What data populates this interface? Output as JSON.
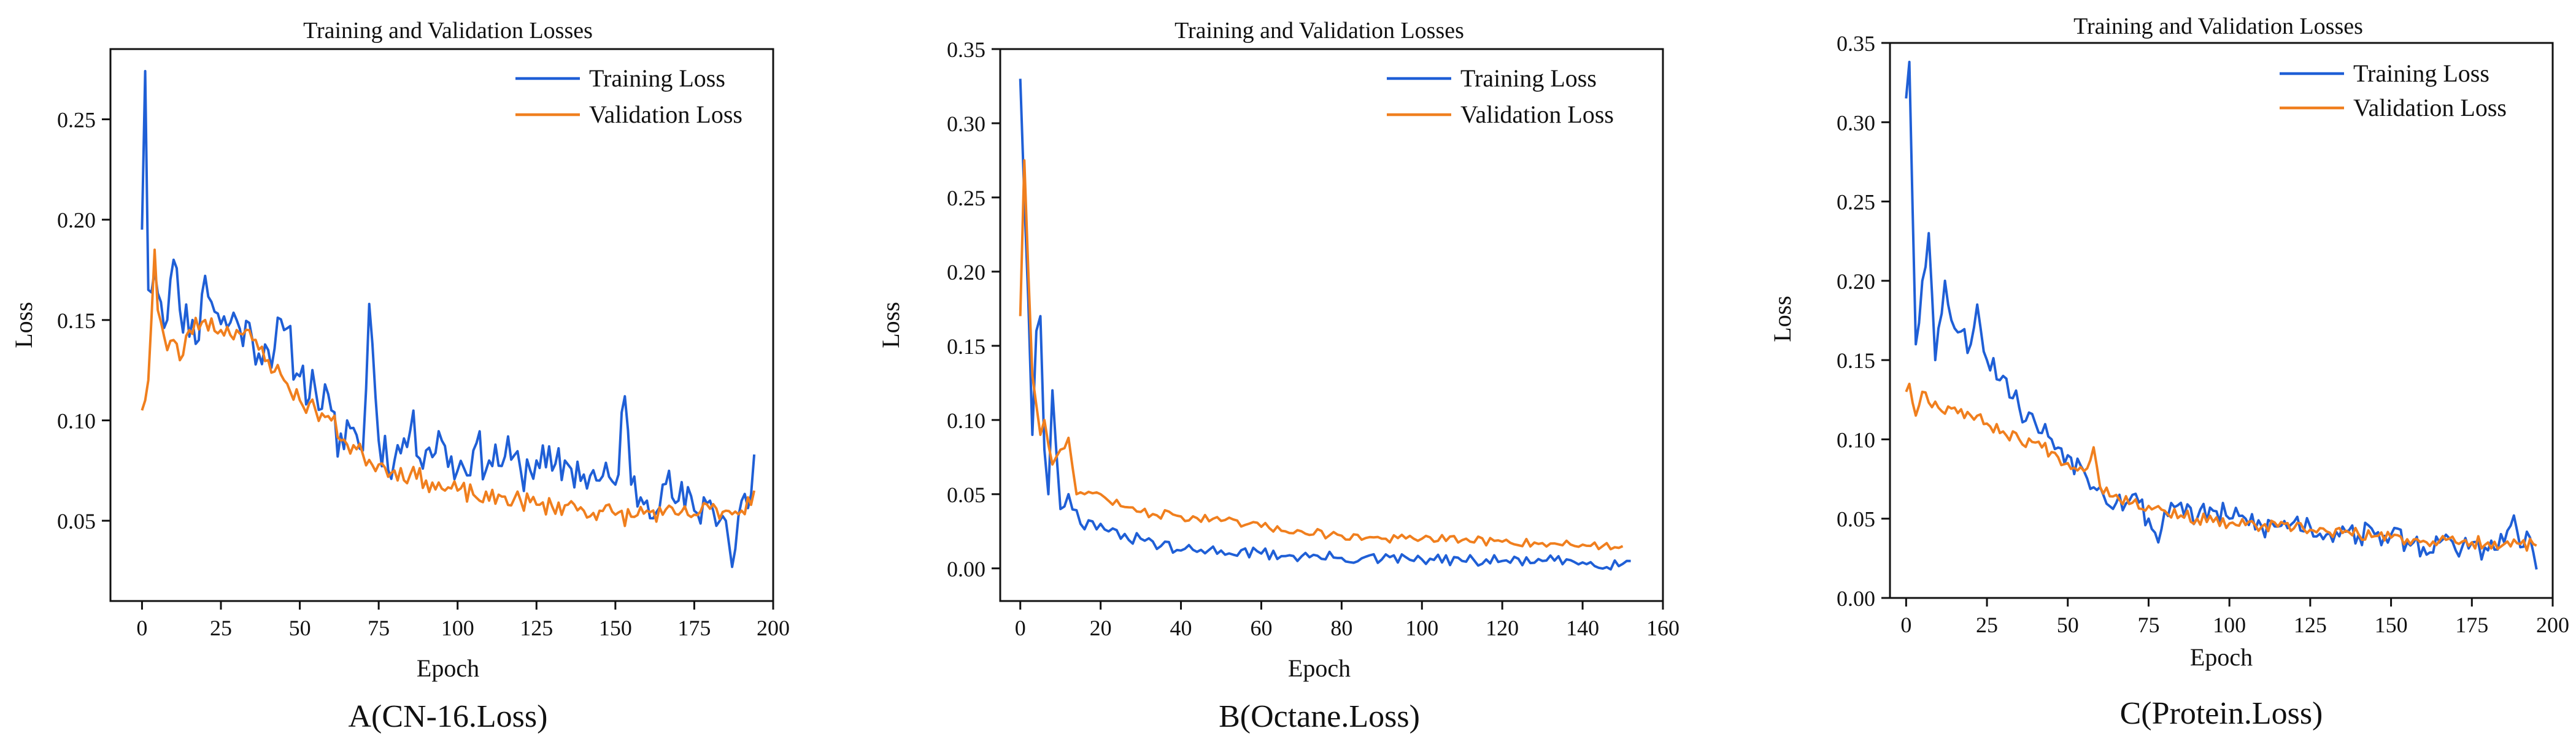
{
  "colors": {
    "training": "#1f5fd6",
    "validation": "#f07f1e",
    "axis": "#111111"
  },
  "chart_data": [
    {
      "type": "line",
      "id": "A",
      "title": "Training and Validation Losses",
      "xlabel": "Epoch",
      "ylabel": "Loss",
      "caption": "A(CN-16.Loss)",
      "xlim": [
        -10,
        200
      ],
      "ylim": [
        0.01,
        0.285
      ],
      "xticks": [
        0,
        25,
        50,
        75,
        100,
        125,
        150,
        175,
        200
      ],
      "yticks": [
        0.05,
        0.1,
        0.15,
        0.2,
        0.25
      ],
      "ytick_labels": [
        "0.05",
        "0.10",
        "0.15",
        "0.20",
        "0.25"
      ],
      "legend_position": "top-right",
      "series": [
        {
          "name": "Training Loss",
          "color": "#1f5fd6",
          "anchors": [
            [
              0,
              0.195
            ],
            [
              1,
              0.274
            ],
            [
              2,
              0.165
            ],
            [
              4,
              0.175
            ],
            [
              8,
              0.15
            ],
            [
              10,
              0.18
            ],
            [
              12,
              0.155
            ],
            [
              16,
              0.15
            ],
            [
              18,
              0.14
            ],
            [
              20,
              0.172
            ],
            [
              25,
              0.148
            ],
            [
              30,
              0.15
            ],
            [
              35,
              0.14
            ],
            [
              40,
              0.135
            ],
            [
              45,
              0.145
            ],
            [
              50,
              0.122
            ],
            [
              55,
              0.115
            ],
            [
              60,
              0.105
            ],
            [
              62,
              0.082
            ],
            [
              65,
              0.1
            ],
            [
              70,
              0.085
            ],
            [
              72,
              0.158
            ],
            [
              75,
              0.09
            ],
            [
              80,
              0.08
            ],
            [
              85,
              0.095
            ],
            [
              90,
              0.085
            ],
            [
              95,
              0.09
            ],
            [
              100,
              0.075
            ],
            [
              105,
              0.085
            ],
            [
              110,
              0.08
            ],
            [
              115,
              0.082
            ],
            [
              120,
              0.075
            ],
            [
              125,
              0.08
            ],
            [
              130,
              0.075
            ],
            [
              135,
              0.078
            ],
            [
              140,
              0.073
            ],
            [
              145,
              0.07
            ],
            [
              150,
              0.068
            ],
            [
              153,
              0.112
            ],
            [
              155,
              0.068
            ],
            [
              160,
              0.06
            ],
            [
              165,
              0.068
            ],
            [
              170,
              0.06
            ],
            [
              175,
              0.055
            ],
            [
              180,
              0.06
            ],
            [
              185,
              0.05
            ],
            [
              187,
              0.027
            ],
            [
              190,
              0.06
            ],
            [
              193,
              0.063
            ],
            [
              194,
              0.083
            ]
          ],
          "noise": 0.012,
          "seed": 11
        },
        {
          "name": "Validation Loss",
          "color": "#f07f1e",
          "anchors": [
            [
              0,
              0.105
            ],
            [
              2,
              0.12
            ],
            [
              4,
              0.185
            ],
            [
              5,
              0.155
            ],
            [
              8,
              0.135
            ],
            [
              10,
              0.14
            ],
            [
              12,
              0.13
            ],
            [
              15,
              0.145
            ],
            [
              20,
              0.15
            ],
            [
              25,
              0.145
            ],
            [
              30,
              0.145
            ],
            [
              35,
              0.14
            ],
            [
              40,
              0.13
            ],
            [
              45,
              0.12
            ],
            [
              50,
              0.11
            ],
            [
              55,
              0.105
            ],
            [
              60,
              0.1
            ],
            [
              65,
              0.088
            ],
            [
              70,
              0.083
            ],
            [
              75,
              0.078
            ],
            [
              80,
              0.075
            ],
            [
              85,
              0.073
            ],
            [
              90,
              0.07
            ],
            [
              95,
              0.066
            ],
            [
              100,
              0.065
            ],
            [
              105,
              0.063
            ],
            [
              110,
              0.06
            ],
            [
              115,
              0.062
            ],
            [
              120,
              0.06
            ],
            [
              125,
              0.058
            ],
            [
              130,
              0.057
            ],
            [
              135,
              0.058
            ],
            [
              140,
              0.055
            ],
            [
              145,
              0.055
            ],
            [
              150,
              0.053
            ],
            [
              155,
              0.052
            ],
            [
              160,
              0.055
            ],
            [
              165,
              0.053
            ],
            [
              170,
              0.053
            ],
            [
              175,
              0.053
            ],
            [
              180,
              0.056
            ],
            [
              185,
              0.055
            ],
            [
              190,
              0.055
            ],
            [
              194,
              0.065
            ]
          ],
          "noise": 0.005,
          "seed": 23
        }
      ]
    },
    {
      "type": "line",
      "id": "B",
      "title": "Training and Validation Losses",
      "xlabel": "Epoch",
      "ylabel": "Loss",
      "caption": "B(Octane.Loss)",
      "xlim": [
        -5,
        160
      ],
      "ylim": [
        -0.022,
        0.35
      ],
      "xticks": [
        0,
        20,
        40,
        60,
        80,
        100,
        120,
        140,
        160
      ],
      "yticks": [
        0,
        0.05,
        0.1,
        0.15,
        0.2,
        0.25,
        0.3,
        0.35
      ],
      "ytick_labels": [
        "0.00",
        "0.05",
        "0.10",
        "0.15",
        "0.20",
        "0.25",
        "0.30",
        "0.35"
      ],
      "legend_position": "top-right",
      "series": [
        {
          "name": "Training Loss",
          "color": "#1f5fd6",
          "anchors": [
            [
              0,
              0.33
            ],
            [
              1,
              0.25
            ],
            [
              2,
              0.18
            ],
            [
              3,
              0.09
            ],
            [
              4,
              0.16
            ],
            [
              5,
              0.17
            ],
            [
              6,
              0.08
            ],
            [
              7,
              0.05
            ],
            [
              8,
              0.12
            ],
            [
              10,
              0.04
            ],
            [
              12,
              0.05
            ],
            [
              15,
              0.03
            ],
            [
              20,
              0.03
            ],
            [
              25,
              0.02
            ],
            [
              30,
              0.02
            ],
            [
              35,
              0.015
            ],
            [
              40,
              0.012
            ],
            [
              50,
              0.012
            ],
            [
              60,
              0.01
            ],
            [
              70,
              0.008
            ],
            [
              80,
              0.007
            ],
            [
              90,
              0.006
            ],
            [
              100,
              0.006
            ],
            [
              110,
              0.005
            ],
            [
              120,
              0.005
            ],
            [
              130,
              0.005
            ],
            [
              140,
              0.004
            ],
            [
              150,
              0.003
            ],
            [
              152,
              0.005
            ]
          ],
          "noise": 0.004,
          "seed": 31
        },
        {
          "name": "Validation Loss",
          "color": "#f07f1e",
          "anchors": [
            [
              0,
              0.17
            ],
            [
              1,
              0.275
            ],
            [
              2,
              0.2
            ],
            [
              3,
              0.13
            ],
            [
              4,
              0.11
            ],
            [
              5,
              0.09
            ],
            [
              6,
              0.1
            ],
            [
              8,
              0.07
            ],
            [
              10,
              0.08
            ],
            [
              12,
              0.088
            ],
            [
              14,
              0.05
            ],
            [
              16,
              0.05
            ],
            [
              20,
              0.05
            ],
            [
              25,
              0.042
            ],
            [
              30,
              0.038
            ],
            [
              40,
              0.035
            ],
            [
              50,
              0.032
            ],
            [
              60,
              0.028
            ],
            [
              70,
              0.025
            ],
            [
              80,
              0.022
            ],
            [
              90,
              0.02
            ],
            [
              100,
              0.02
            ],
            [
              110,
              0.019
            ],
            [
              120,
              0.018
            ],
            [
              130,
              0.017
            ],
            [
              140,
              0.016
            ],
            [
              145,
              0.015
            ],
            [
              150,
              0.015
            ]
          ],
          "noise": 0.003,
          "seed": 47
        }
      ]
    },
    {
      "type": "line",
      "id": "C",
      "title": "Training and Validation Losses",
      "xlabel": "Epoch",
      "ylabel": "Loss",
      "caption": "C(Protein.Loss)",
      "xlim": [
        -5,
        200
      ],
      "ylim": [
        0,
        0.35
      ],
      "xticks": [
        0,
        25,
        50,
        75,
        100,
        125,
        150,
        175,
        200
      ],
      "yticks": [
        0,
        0.05,
        0.1,
        0.15,
        0.2,
        0.25,
        0.3,
        0.35
      ],
      "ytick_labels": [
        "0.00",
        "0.05",
        "0.10",
        "0.15",
        "0.20",
        "0.25",
        "0.30",
        "0.35"
      ],
      "legend_position": "top-right",
      "series": [
        {
          "name": "Training Loss",
          "color": "#1f5fd6",
          "anchors": [
            [
              0,
              0.315
            ],
            [
              1,
              0.338
            ],
            [
              3,
              0.16
            ],
            [
              5,
              0.2
            ],
            [
              7,
              0.23
            ],
            [
              9,
              0.15
            ],
            [
              12,
              0.2
            ],
            [
              15,
              0.17
            ],
            [
              20,
              0.16
            ],
            [
              22,
              0.185
            ],
            [
              25,
              0.15
            ],
            [
              30,
              0.14
            ],
            [
              35,
              0.12
            ],
            [
              40,
              0.11
            ],
            [
              45,
              0.1
            ],
            [
              50,
              0.09
            ],
            [
              55,
              0.08
            ],
            [
              60,
              0.07
            ],
            [
              65,
              0.06
            ],
            [
              70,
              0.065
            ],
            [
              75,
              0.05
            ],
            [
              78,
              0.035
            ],
            [
              80,
              0.055
            ],
            [
              85,
              0.06
            ],
            [
              90,
              0.05
            ],
            [
              95,
              0.055
            ],
            [
              100,
              0.05
            ],
            [
              105,
              0.05
            ],
            [
              110,
              0.045
            ],
            [
              115,
              0.045
            ],
            [
              120,
              0.048
            ],
            [
              125,
              0.045
            ],
            [
              130,
              0.04
            ],
            [
              135,
              0.045
            ],
            [
              140,
              0.04
            ],
            [
              145,
              0.04
            ],
            [
              150,
              0.04
            ],
            [
              155,
              0.035
            ],
            [
              160,
              0.032
            ],
            [
              165,
              0.035
            ],
            [
              170,
              0.03
            ],
            [
              175,
              0.035
            ],
            [
              180,
              0.03
            ],
            [
              185,
              0.035
            ],
            [
              188,
              0.052
            ],
            [
              190,
              0.032
            ],
            [
              193,
              0.038
            ],
            [
              195,
              0.018
            ]
          ],
          "noise": 0.008,
          "seed": 53
        },
        {
          "name": "Validation Loss",
          "color": "#f07f1e",
          "anchors": [
            [
              0,
              0.13
            ],
            [
              1,
              0.135
            ],
            [
              3,
              0.115
            ],
            [
              5,
              0.13
            ],
            [
              10,
              0.12
            ],
            [
              15,
              0.12
            ],
            [
              20,
              0.115
            ],
            [
              25,
              0.11
            ],
            [
              30,
              0.105
            ],
            [
              35,
              0.1
            ],
            [
              40,
              0.098
            ],
            [
              45,
              0.092
            ],
            [
              50,
              0.085
            ],
            [
              55,
              0.08
            ],
            [
              58,
              0.095
            ],
            [
              60,
              0.07
            ],
            [
              65,
              0.065
            ],
            [
              70,
              0.06
            ],
            [
              75,
              0.058
            ],
            [
              80,
              0.055
            ],
            [
              85,
              0.052
            ],
            [
              90,
              0.05
            ],
            [
              95,
              0.048
            ],
            [
              100,
              0.047
            ],
            [
              105,
              0.046
            ],
            [
              110,
              0.045
            ],
            [
              115,
              0.045
            ],
            [
              120,
              0.044
            ],
            [
              125,
              0.043
            ],
            [
              130,
              0.042
            ],
            [
              135,
              0.041
            ],
            [
              140,
              0.04
            ],
            [
              145,
              0.039
            ],
            [
              150,
              0.038
            ],
            [
              155,
              0.037
            ],
            [
              160,
              0.036
            ],
            [
              165,
              0.036
            ],
            [
              170,
              0.035
            ],
            [
              175,
              0.035
            ],
            [
              180,
              0.035
            ],
            [
              185,
              0.034
            ],
            [
              190,
              0.034
            ],
            [
              195,
              0.033
            ]
          ],
          "noise": 0.004,
          "seed": 67
        }
      ]
    }
  ]
}
